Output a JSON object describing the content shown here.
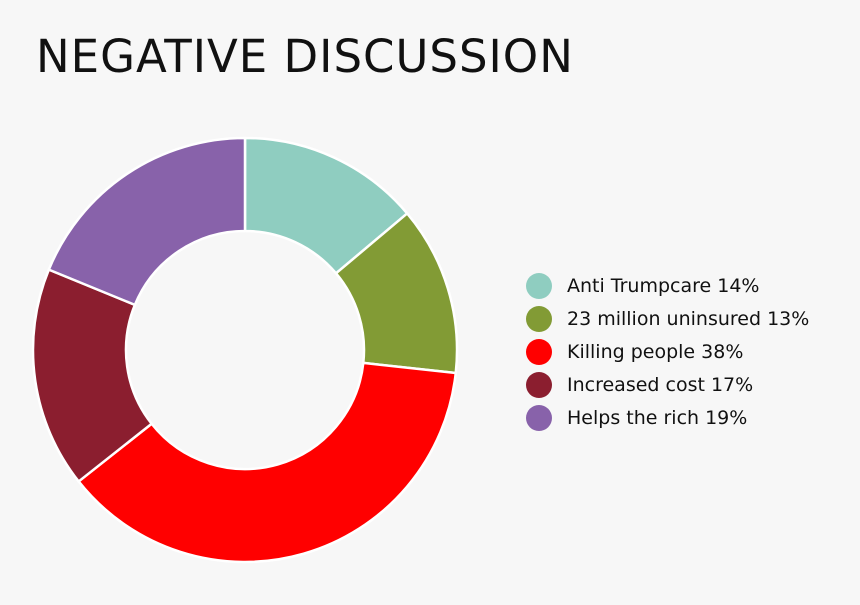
{
  "chart_data": {
    "type": "pie",
    "title": "NEGATIVE DISCUSSION",
    "categories": [
      "Anti Trumpcare",
      "23 million uninsured",
      "Killing people",
      "Increased cost",
      "Helps the rich"
    ],
    "values": [
      14,
      13,
      38,
      17,
      19
    ],
    "value_labels": [
      "14%",
      "13%",
      "38%",
      "17%",
      "19%"
    ],
    "colors": [
      "#8fcdc0",
      "#829b35",
      "#ff0000",
      "#8b1e2f",
      "#8862aa"
    ],
    "donut": true,
    "legend": "right"
  },
  "legend_items": [
    {
      "label": "Anti Trumpcare 14%",
      "color": "#8fcdc0"
    },
    {
      "label": "23 million uninsured 13%",
      "color": "#829b35"
    },
    {
      "label": "Killing people 38%",
      "color": "#ff0000"
    },
    {
      "label": "Increased cost 17%",
      "color": "#8b1e2f"
    },
    {
      "label": "Helps the rich 19%",
      "color": "#8862aa"
    }
  ]
}
